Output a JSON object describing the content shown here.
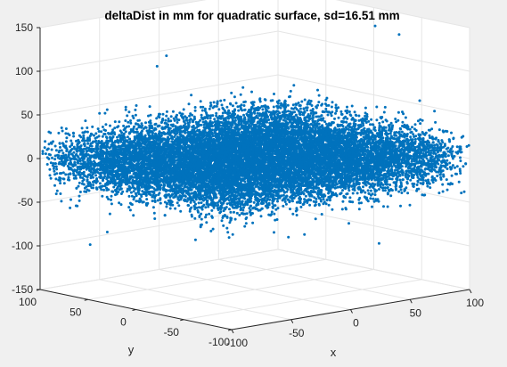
{
  "chart_data": {
    "type": "scatter",
    "title": "deltaDist in mm for quadratic surface, sd=16.51 mm",
    "xlabel": "x",
    "ylabel": "y",
    "zlabel": "",
    "xlim": [
      -100,
      100
    ],
    "ylim": [
      -100,
      100
    ],
    "zlim": [
      -150,
      150
    ],
    "x_ticks": [
      "-100",
      "-50",
      "0",
      "50",
      "100"
    ],
    "y_ticks": [
      "100",
      "50",
      "0",
      "-50",
      "-100"
    ],
    "z_ticks": [
      "150",
      "100",
      "50",
      "0",
      "-50",
      "-100",
      "-150"
    ],
    "grid": true,
    "marker_color": "#0072bd",
    "background_color": "#ffffff",
    "figure_color": "#f0f0f0",
    "series": [
      {
        "points": [
          [
            -30,
            55,
            112
          ],
          [
            -50,
            40,
            108
          ],
          [
            85,
            -20,
            137
          ],
          [
            85,
            -45,
            133
          ],
          [
            -40,
            60,
            55
          ],
          [
            -5,
            40,
            52
          ],
          [
            30,
            -30,
            48
          ],
          [
            60,
            -40,
            40
          ],
          [
            90,
            -70,
            28
          ],
          [
            85,
            -75,
            18
          ],
          [
            -70,
            85,
            -102
          ],
          [
            40,
            -80,
            -88
          ],
          [
            -80,
            50,
            -45
          ],
          [
            -60,
            30,
            -62
          ],
          [
            70,
            -40,
            -55
          ],
          [
            -90,
            70,
            15
          ],
          [
            -20,
            10,
            37
          ],
          [
            20,
            5,
            40
          ],
          [
            -10,
            -20,
            -42
          ],
          [
            10,
            25,
            -38
          ],
          [
            -55,
            45,
            -10
          ],
          [
            50,
            -50,
            8
          ],
          [
            0,
            0,
            0
          ],
          [
            35,
            15,
            -22
          ],
          [
            -30,
            -25,
            18
          ],
          [
            0,
            -20,
            -80
          ]
        ]
      }
    ],
    "cloud": {
      "count": 14000,
      "z_sd": 16.51,
      "x_range": [
        -100,
        100
      ],
      "y_range": [
        -100,
        100
      ]
    }
  }
}
